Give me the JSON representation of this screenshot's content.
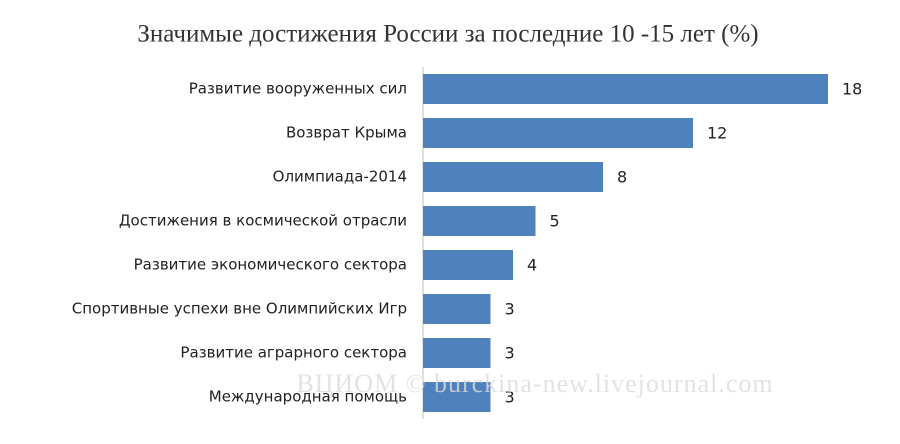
{
  "chart_data": {
    "type": "bar",
    "orientation": "horizontal",
    "title": "Значимые достижения России за последние 10 -15 лет (%)",
    "categories": [
      "Развитие вооруженных сил",
      "Возврат Крыма",
      "Олимпиада-2014",
      "Достижения в космической отрасли",
      "Развитие экономического сектора",
      "Спортивные успехи вне Олимпийских Игр",
      "Развитие аграрного сектора",
      "Международная помощь"
    ],
    "values": [
      18,
      12,
      8,
      5,
      4,
      3,
      3,
      3
    ],
    "color": "#4f81bd",
    "watermark": "ВЦИОМ © burckina-new.livejournal.com"
  }
}
